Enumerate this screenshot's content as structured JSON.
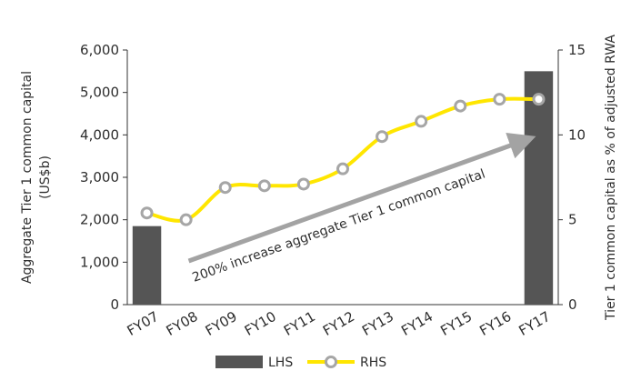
{
  "chart_data": {
    "type": "bar+line",
    "categories": [
      "FY07",
      "FY08",
      "FY09",
      "FY10",
      "FY11",
      "FY12",
      "FY13",
      "FY14",
      "FY15",
      "FY16",
      "FY17"
    ],
    "series": [
      {
        "name": "LHS",
        "kind": "bar",
        "axis": "left",
        "color": "#555555",
        "values": [
          1850,
          null,
          null,
          null,
          null,
          null,
          null,
          null,
          null,
          null,
          5500
        ]
      },
      {
        "name": "RHS",
        "kind": "line",
        "axis": "right",
        "color": "#ffe600",
        "marker_color": "#a6a6a6",
        "values": [
          5.4,
          5.0,
          6.9,
          7.0,
          7.1,
          8.0,
          9.9,
          10.8,
          11.7,
          12.1,
          12.1
        ]
      }
    ],
    "ylabel_left": "Aggregate Tier 1 common capital\n(US$b)",
    "ylabel_right": "Tier 1 common capital as % of adjusted RWA",
    "ylim_left": [
      0,
      6000
    ],
    "ylim_right": [
      0,
      15
    ],
    "yticks_left": [
      "0",
      "1,000",
      "2,000",
      "3,000",
      "4,000",
      "5,000",
      "6,000"
    ],
    "yticks_right": [
      "0",
      "5",
      "10",
      "15"
    ],
    "annotation": "200% increase aggregate Tier 1 common capital",
    "legend": [
      "LHS",
      "RHS"
    ],
    "legend_position": "bottom",
    "grid": false
  }
}
